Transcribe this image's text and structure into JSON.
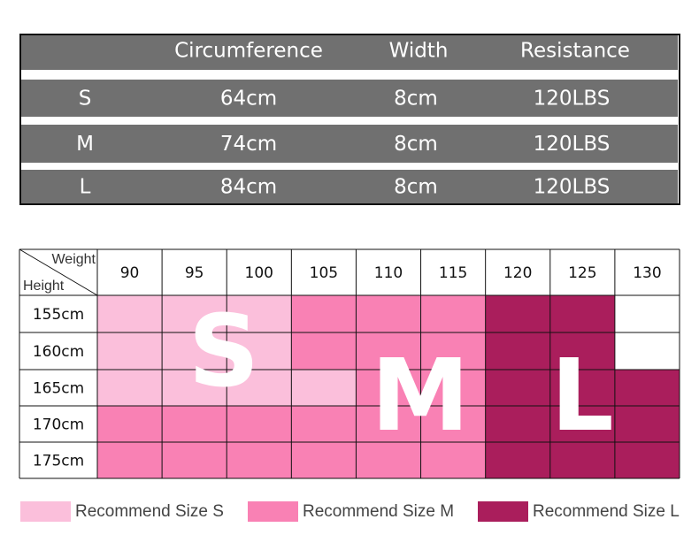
{
  "spec_table": {
    "columns": [
      "Circumference",
      "Width",
      "Resistance"
    ],
    "rows": [
      {
        "size": "S",
        "values": [
          "64cm",
          "8cm",
          "120LBS"
        ]
      },
      {
        "size": "M",
        "values": [
          "74cm",
          "8cm",
          "120LBS"
        ]
      },
      {
        "size": "L",
        "values": [
          "84cm",
          "8cm",
          "120LBS"
        ]
      }
    ]
  },
  "size_grid": {
    "corner_top": "Weight",
    "corner_bottom": "Height",
    "weights": [
      90,
      95,
      100,
      105,
      110,
      115,
      120,
      125,
      130
    ],
    "heights": [
      "155cm",
      "160cm",
      "165cm",
      "170cm",
      "175cm"
    ],
    "cells": [
      [
        "#fbbfdb",
        "#fbbfdb",
        "#fbbfdb",
        "#f981b4",
        "#f981b4",
        "#f981b4",
        "#aa1e5c",
        "#aa1e5c",
        null
      ],
      [
        "#fbbfdb",
        "#fbbfdb",
        "#fbbfdb",
        "#f981b4",
        "#f981b4",
        "#f981b4",
        "#aa1e5c",
        "#aa1e5c",
        null
      ],
      [
        "#fbbfdb",
        "#fbbfdb",
        "#fbbfdb",
        "#fbbfdb",
        "#f981b4",
        "#f981b4",
        "#aa1e5c",
        "#aa1e5c",
        "#aa1e5c"
      ],
      [
        "#f981b4",
        "#f981b4",
        "#f981b4",
        "#f981b4",
        "#f981b4",
        "#f981b4",
        "#aa1e5c",
        "#aa1e5c",
        "#aa1e5c"
      ],
      [
        "#f981b4",
        "#f981b4",
        "#f981b4",
        "#f981b4",
        "#f981b4",
        "#f981b4",
        "#aa1e5c",
        "#aa1e5c",
        "#aa1e5c"
      ]
    ],
    "overlay_labels": [
      "S",
      "M",
      "L"
    ]
  },
  "legend": [
    {
      "color": "#fbbfdb",
      "label": "Recommend Size S"
    },
    {
      "color": "#f981b4",
      "label": "Recommend Size M"
    },
    {
      "color": "#aa1e5c",
      "label": "Recommend Size L"
    }
  ]
}
